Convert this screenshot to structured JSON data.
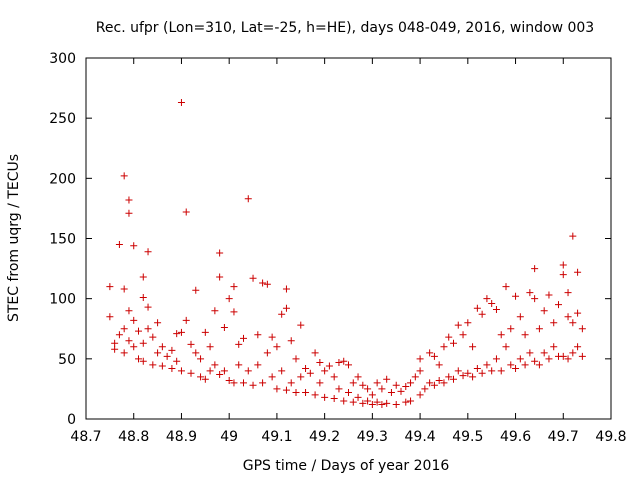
{
  "chart_data": {
    "type": "scatter",
    "title": "Rec. ufpr (Lon=310, Lat=-25, h=HE), days 048-049, 2016, window 003",
    "xlabel": "GPS time / Days of year 2016",
    "ylabel": "STEC from uqrg / TECUs",
    "xlim": [
      48.7,
      49.8
    ],
    "ylim": [
      0,
      300
    ],
    "xticks": [
      "48.7",
      "48.8",
      "48.9",
      "49",
      "49.1",
      "49.2",
      "49.3",
      "49.4",
      "49.5",
      "49.6",
      "49.7",
      "49.8"
    ],
    "yticks": [
      "0",
      "50",
      "100",
      "150",
      "200",
      "250",
      "300"
    ],
    "marker": "+",
    "color": "#cc0000",
    "grid": false,
    "series": [
      {
        "name": "STEC",
        "points": [
          [
            48.75,
            110
          ],
          [
            48.75,
            85
          ],
          [
            48.76,
            63
          ],
          [
            48.76,
            58
          ],
          [
            48.77,
            145
          ],
          [
            48.77,
            70
          ],
          [
            48.78,
            202
          ],
          [
            48.78,
            108
          ],
          [
            48.78,
            75
          ],
          [
            48.78,
            55
          ],
          [
            48.79,
            182
          ],
          [
            48.79,
            171
          ],
          [
            48.79,
            90
          ],
          [
            48.79,
            65
          ],
          [
            48.8,
            144
          ],
          [
            48.8,
            82
          ],
          [
            48.8,
            60
          ],
          [
            48.81,
            73
          ],
          [
            48.81,
            50
          ],
          [
            48.82,
            118
          ],
          [
            48.82,
            101
          ],
          [
            48.82,
            63
          ],
          [
            48.82,
            48
          ],
          [
            48.83,
            139
          ],
          [
            48.83,
            93
          ],
          [
            48.83,
            75
          ],
          [
            48.84,
            68
          ],
          [
            48.84,
            45
          ],
          [
            48.85,
            80
          ],
          [
            48.85,
            55
          ],
          [
            48.86,
            60
          ],
          [
            48.86,
            44
          ],
          [
            48.87,
            52
          ],
          [
            48.88,
            57
          ],
          [
            48.88,
            42
          ],
          [
            48.89,
            71
          ],
          [
            48.89,
            48
          ],
          [
            48.9,
            263
          ],
          [
            48.9,
            72
          ],
          [
            48.9,
            40
          ],
          [
            48.91,
            172
          ],
          [
            48.91,
            82
          ],
          [
            48.92,
            62
          ],
          [
            48.92,
            38
          ],
          [
            48.93,
            107
          ],
          [
            48.93,
            55
          ],
          [
            48.94,
            50
          ],
          [
            48.94,
            35
          ],
          [
            48.95,
            72
          ],
          [
            48.95,
            33
          ],
          [
            48.96,
            60
          ],
          [
            48.96,
            40
          ],
          [
            48.97,
            90
          ],
          [
            48.97,
            45
          ],
          [
            48.98,
            138
          ],
          [
            48.98,
            118
          ],
          [
            48.98,
            37
          ],
          [
            48.99,
            76
          ],
          [
            48.99,
            40
          ],
          [
            49.0,
            100
          ],
          [
            49.0,
            32
          ],
          [
            49.01,
            110
          ],
          [
            49.01,
            89
          ],
          [
            49.01,
            30
          ],
          [
            49.02,
            62
          ],
          [
            49.02,
            45
          ],
          [
            49.03,
            67
          ],
          [
            49.03,
            30
          ],
          [
            49.04,
            183
          ],
          [
            49.04,
            40
          ],
          [
            49.05,
            117
          ],
          [
            49.05,
            28
          ],
          [
            49.06,
            70
          ],
          [
            49.06,
            45
          ],
          [
            49.07,
            113
          ],
          [
            49.07,
            30
          ],
          [
            49.08,
            112
          ],
          [
            49.08,
            55
          ],
          [
            49.09,
            68
          ],
          [
            49.09,
            35
          ],
          [
            49.1,
            60
          ],
          [
            49.1,
            25
          ],
          [
            49.11,
            87
          ],
          [
            49.11,
            40
          ],
          [
            49.12,
            108
          ],
          [
            49.12,
            92
          ],
          [
            49.12,
            24
          ],
          [
            49.13,
            65
          ],
          [
            49.13,
            30
          ],
          [
            49.14,
            50
          ],
          [
            49.14,
            22
          ],
          [
            49.15,
            78
          ],
          [
            49.15,
            35
          ],
          [
            49.16,
            42
          ],
          [
            49.16,
            22
          ],
          [
            49.17,
            38
          ],
          [
            49.18,
            55
          ],
          [
            49.18,
            20
          ],
          [
            49.19,
            47
          ],
          [
            49.19,
            30
          ],
          [
            49.2,
            40
          ],
          [
            49.2,
            18
          ],
          [
            49.21,
            44
          ],
          [
            49.22,
            35
          ],
          [
            49.22,
            17
          ],
          [
            49.23,
            47
          ],
          [
            49.23,
            25
          ],
          [
            49.24,
            48
          ],
          [
            49.24,
            15
          ],
          [
            49.25,
            45
          ],
          [
            49.25,
            22
          ],
          [
            49.26,
            30
          ],
          [
            49.26,
            14
          ],
          [
            49.27,
            35
          ],
          [
            49.27,
            18
          ],
          [
            49.28,
            28
          ],
          [
            49.28,
            13
          ],
          [
            49.29,
            25
          ],
          [
            49.29,
            15
          ],
          [
            49.3,
            20
          ],
          [
            49.3,
            12
          ],
          [
            49.31,
            30
          ],
          [
            49.31,
            14
          ],
          [
            49.32,
            25
          ],
          [
            49.32,
            12
          ],
          [
            49.33,
            33
          ],
          [
            49.33,
            13
          ],
          [
            49.34,
            22
          ],
          [
            49.35,
            28
          ],
          [
            49.35,
            12
          ],
          [
            49.36,
            23
          ],
          [
            49.37,
            27
          ],
          [
            49.37,
            14
          ],
          [
            49.38,
            30
          ],
          [
            49.38,
            15
          ],
          [
            49.39,
            35
          ],
          [
            49.4,
            50
          ],
          [
            49.4,
            40
          ],
          [
            49.4,
            20
          ],
          [
            49.41,
            25
          ],
          [
            49.42,
            55
          ],
          [
            49.42,
            30
          ],
          [
            49.43,
            52
          ],
          [
            49.43,
            28
          ],
          [
            49.44,
            45
          ],
          [
            49.44,
            32
          ],
          [
            49.45,
            60
          ],
          [
            49.45,
            30
          ],
          [
            49.46,
            68
          ],
          [
            49.46,
            35
          ],
          [
            49.47,
            63
          ],
          [
            49.47,
            33
          ],
          [
            49.48,
            78
          ],
          [
            49.48,
            40
          ],
          [
            49.49,
            70
          ],
          [
            49.49,
            36
          ],
          [
            49.5,
            80
          ],
          [
            49.5,
            38
          ],
          [
            49.51,
            60
          ],
          [
            49.51,
            35
          ],
          [
            49.52,
            92
          ],
          [
            49.52,
            42
          ],
          [
            49.53,
            87
          ],
          [
            49.53,
            38
          ],
          [
            49.54,
            100
          ],
          [
            49.54,
            45
          ],
          [
            49.55,
            96
          ],
          [
            49.55,
            40
          ],
          [
            49.56,
            91
          ],
          [
            49.56,
            50
          ],
          [
            49.57,
            70
          ],
          [
            49.57,
            40
          ],
          [
            49.58,
            110
          ],
          [
            49.58,
            60
          ],
          [
            49.59,
            75
          ],
          [
            49.59,
            45
          ],
          [
            49.6,
            102
          ],
          [
            49.6,
            42
          ],
          [
            49.61,
            85
          ],
          [
            49.61,
            50
          ],
          [
            49.62,
            70
          ],
          [
            49.62,
            45
          ],
          [
            49.63,
            105
          ],
          [
            49.63,
            55
          ],
          [
            49.64,
            125
          ],
          [
            49.64,
            100
          ],
          [
            49.64,
            48
          ],
          [
            49.65,
            75
          ],
          [
            49.65,
            45
          ],
          [
            49.66,
            90
          ],
          [
            49.66,
            55
          ],
          [
            49.67,
            103
          ],
          [
            49.67,
            50
          ],
          [
            49.68,
            80
          ],
          [
            49.68,
            60
          ],
          [
            49.69,
            95
          ],
          [
            49.69,
            52
          ],
          [
            49.7,
            128
          ],
          [
            49.7,
            120
          ],
          [
            49.7,
            52
          ],
          [
            49.71,
            105
          ],
          [
            49.71,
            85
          ],
          [
            49.71,
            50
          ],
          [
            49.72,
            152
          ],
          [
            49.72,
            80
          ],
          [
            49.72,
            55
          ],
          [
            49.73,
            122
          ],
          [
            49.73,
            88
          ],
          [
            49.73,
            60
          ],
          [
            49.74,
            75
          ],
          [
            49.74,
            52
          ]
        ]
      }
    ]
  }
}
